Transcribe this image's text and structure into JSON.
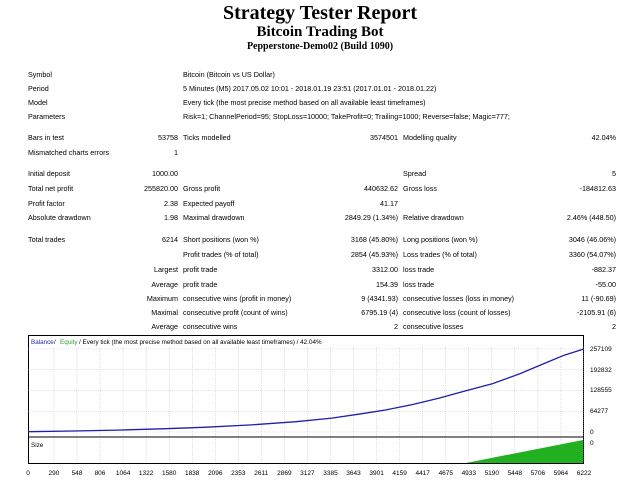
{
  "header": {
    "title": "Strategy Tester Report",
    "subtitle": "Bitcoin Trading Bot",
    "server": "Pepperstone-Demo02 (Build 1090)"
  },
  "info": {
    "symbol_label": "Symbol",
    "symbol_value": "Bitcoin (Bitcoin vs US Dollar)",
    "period_label": "Period",
    "period_value": "5 Minutes (M5) 2017.05.02 10:01 - 2018.01.19 23:51 (2017.01.01 - 2018.01.22)",
    "model_label": "Model",
    "model_value": "Every tick (the most precise method based on all available least timeframes)",
    "params_label": "Parameters",
    "params_value": "Risk=1; ChannelPeriod=95; StopLoss=10000; TakeProfit=0; Trailing=1000; Reverse=false; Magic=777;"
  },
  "stats": {
    "bars_label": "Bars in test",
    "bars_value": "53758",
    "ticks_label": "Ticks modelled",
    "ticks_value": "3574501",
    "quality_label": "Modelling quality",
    "quality_value": "42.04%",
    "mismatch_label": "Mismatched charts errors",
    "mismatch_value": "1",
    "deposit_label": "Initial deposit",
    "deposit_value": "1000.00",
    "spread_label": "Spread",
    "spread_value": "5",
    "netprofit_label": "Total net profit",
    "netprofit_value": "255820.00",
    "grossprofit_label": "Gross profit",
    "grossprofit_value": "440632.62",
    "grossloss_label": "Gross loss",
    "grossloss_value": "-184812.63",
    "pf_label": "Profit factor",
    "pf_value": "2.38",
    "payoff_label": "Expected payoff",
    "payoff_value": "41.17",
    "absdd_label": "Absolute drawdown",
    "absdd_value": "1.98",
    "maxdd_label": "Maximal drawdown",
    "maxdd_value": "2849.29 (1.34%)",
    "reldd_label": "Relative drawdown",
    "reldd_value": "2.46% (448.50)",
    "trades_label": "Total trades",
    "trades_value": "6214",
    "short_label": "Short positions (won %)",
    "short_value": "3168 (45.80%)",
    "long_label": "Long positions (won %)",
    "long_value": "3046 (46.06%)",
    "proftr_label": "Profit trades (% of total)",
    "proftr_value": "2854 (45.93%)",
    "losstr_label": "Loss trades (% of total)",
    "losstr_value": "3360 (54.07%)",
    "largest_label": "Largest",
    "largest_pt_label": "profit trade",
    "largest_pt_value": "3312.00",
    "largest_lt_label": "loss trade",
    "largest_lt_value": "-882.37",
    "average_label": "Average",
    "average_pt_label": "profit trade",
    "average_pt_value": "154.39",
    "average_lt_label": "loss trade",
    "average_lt_value": "-55.00",
    "maximum_label": "Maximum",
    "maximum_w_label": "consecutive wins (profit in money)",
    "maximum_w_value": "9 (4341.93)",
    "maximum_l_label": "consecutive losses (loss in money)",
    "maximum_l_value": "11 (-90.69)",
    "maximal_label": "Maximal",
    "maximal_w_label": "consecutive profit (count of wins)",
    "maximal_w_value": "6795.19 (4)",
    "maximal_l_label": "consecutive loss (count of losses)",
    "maximal_l_value": "-2105.91 (6)",
    "average2_label": "Average",
    "average2_w_label": "consecutive wins",
    "average2_w_value": "2",
    "average2_l_label": "consecutive losses",
    "average2_l_value": "2"
  },
  "chart_caption": {
    "balance": "Balance",
    "sep": " / ",
    "equity": "Equity",
    "rest": " / Every tick (the most precise method based on all available least timeframes) / 42.04%"
  },
  "colors": {
    "balance": "#1f1faa",
    "equity": "#2e9e2e",
    "size": "#20b020",
    "grid": "#c8c8c8"
  },
  "chart_data": {
    "type": "line",
    "series": [
      {
        "name": "Balance",
        "x": [
          0,
          500,
          1000,
          1500,
          2000,
          2500,
          3000,
          3400,
          3700,
          4000,
          4300,
          4600,
          4900,
          5200,
          5500,
          5800,
          6000,
          6214
        ],
        "values": [
          1000,
          3000,
          6000,
          10000,
          15000,
          22000,
          32000,
          43000,
          55000,
          68000,
          85000,
          105000,
          128000,
          150000,
          180000,
          215000,
          238000,
          256820
        ]
      }
    ],
    "y_ticks": [
      "257109",
      "192832",
      "128555",
      "64277",
      "0"
    ],
    "x_ticks": [
      "0",
      "290",
      "548",
      "806",
      "1064",
      "1322",
      "1580",
      "1838",
      "2096",
      "2353",
      "2611",
      "2869",
      "3127",
      "3385",
      "3643",
      "3901",
      "4159",
      "4417",
      "4675",
      "4933",
      "5190",
      "5448",
      "5706",
      "5964",
      "6222"
    ],
    "ylim": [
      0,
      257109
    ],
    "xlim": [
      0,
      6222
    ],
    "size_label": "Size",
    "size_y_tick": "0"
  }
}
